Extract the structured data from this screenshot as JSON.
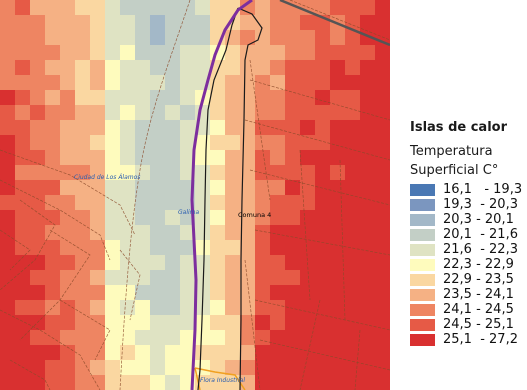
{
  "map": {
    "labels": {
      "ciudad_alamos": "Ciudad de Los Álamos",
      "galima": "Galima",
      "comuna": "Comuna 4",
      "flora_industrial": "Flora Industrial"
    },
    "colors": {
      "river": "#7d2e9e",
      "district_boundary": "#1a1a1a",
      "road": "#555555",
      "street_lines": "#8b4a2a",
      "industrial_zone": "#f0a020"
    }
  },
  "legend": {
    "title": "Islas de calor",
    "subtitle_line1": "Temperatura",
    "subtitle_line2": "Superficial C°",
    "items": [
      {
        "label": "16,1   - 19,3",
        "color": "#4a78b4"
      },
      {
        "label": "19,3  - 20,3",
        "color": "#7b96bf"
      },
      {
        "label": "20,3 - 20,1",
        "color": "#a3b8c8"
      },
      {
        "label": "20,1  - 21,6",
        "color": "#c3cfc6"
      },
      {
        "label": "21,6  - 22,3",
        "color": "#dfe3c3"
      },
      {
        "label": "22,3 - 22,9",
        "color": "#fefbbd"
      },
      {
        "label": "22,9 - 23,5",
        "color": "#fad7a1"
      },
      {
        "label": "23,5 - 24,1",
        "color": "#f5b184"
      },
      {
        "label": "24,1 - 24,5",
        "color": "#ee8562"
      },
      {
        "label": "24,5 - 25,1",
        "color": "#e65a46"
      },
      {
        "label": "25,1  - 27,2",
        "color": "#d93030"
      }
    ]
  }
}
